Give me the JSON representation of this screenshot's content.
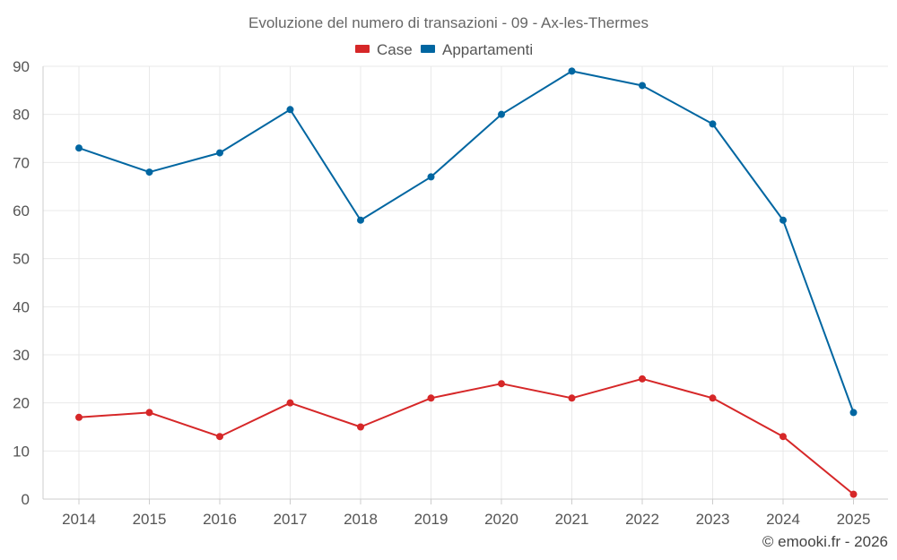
{
  "chart_data": {
    "type": "line",
    "title": "Evoluzione del numero di transazioni - 09 - Ax-les-Thermes",
    "categories": [
      "2014",
      "2015",
      "2016",
      "2017",
      "2018",
      "2019",
      "2020",
      "2021",
      "2022",
      "2023",
      "2024",
      "2025"
    ],
    "series": [
      {
        "name": "Case",
        "color": "#d62728",
        "values": [
          17,
          18,
          13,
          20,
          15,
          21,
          24,
          21,
          25,
          21,
          13,
          1
        ]
      },
      {
        "name": "Appartamenti",
        "color": "#0066a1",
        "values": [
          73,
          68,
          72,
          81,
          58,
          67,
          80,
          89,
          86,
          78,
          58,
          18
        ]
      }
    ],
    "y_ticks": [
      0,
      10,
      20,
      30,
      40,
      50,
      60,
      70,
      80,
      90
    ],
    "ylim": [
      0,
      90
    ],
    "xlabel": "",
    "ylabel": "",
    "grid": true,
    "legend_position": "top-center"
  },
  "credit": "© emooki.fr - 2026"
}
